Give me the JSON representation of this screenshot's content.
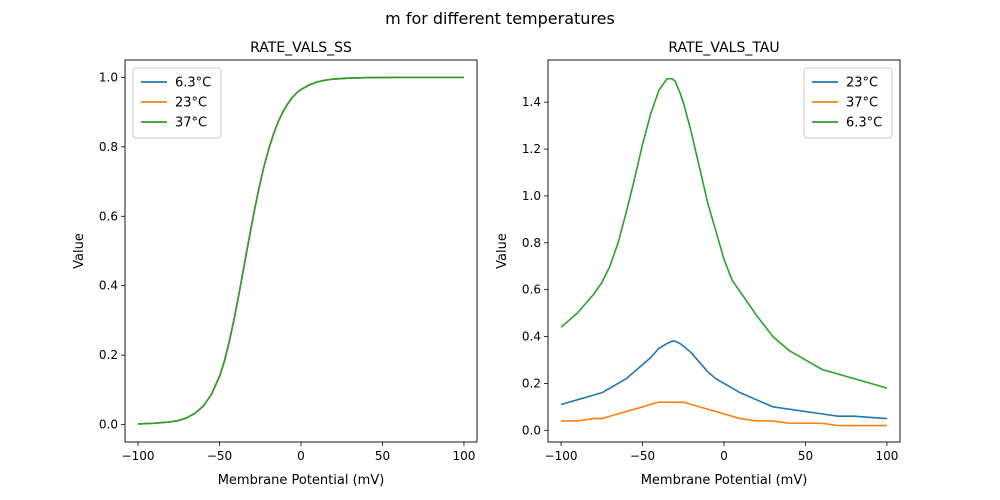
{
  "figure": {
    "suptitle": "m for different temperatures"
  },
  "colors": {
    "blue": "#1f77b4",
    "orange": "#ff7f0e",
    "green": "#2ca02c"
  },
  "chart_data": [
    {
      "type": "line",
      "title": "RATE_VALS_SS",
      "xlabel": "Membrane Potential (mV)",
      "ylabel": "Value",
      "xlim": [
        -108,
        108
      ],
      "ylim": [
        -0.05,
        1.05
      ],
      "xticks": [
        -100,
        -50,
        0,
        50,
        100
      ],
      "yticks": [
        0.0,
        0.2,
        0.4,
        0.6,
        0.8,
        1.0
      ],
      "ytick_decimals": 1,
      "legend_position": "upper-left",
      "grid": false,
      "x": [
        -100,
        -90,
        -80,
        -75,
        -70,
        -65,
        -60,
        -55,
        -50,
        -47,
        -44,
        -41,
        -38,
        -35,
        -32,
        -29,
        -26,
        -23,
        -20,
        -17,
        -14,
        -11,
        -8,
        -5,
        -2,
        0,
        5,
        10,
        15,
        20,
        30,
        40,
        60,
        80,
        100
      ],
      "series": [
        {
          "name": "6.3°C",
          "color": "#1f77b4",
          "values": [
            0.002,
            0.004,
            0.008,
            0.012,
            0.02,
            0.033,
            0.053,
            0.087,
            0.139,
            0.183,
            0.24,
            0.305,
            0.378,
            0.455,
            0.532,
            0.607,
            0.676,
            0.738,
            0.79,
            0.835,
            0.872,
            0.902,
            0.925,
            0.944,
            0.958,
            0.965,
            0.978,
            0.987,
            0.992,
            0.995,
            0.998,
            0.999,
            1.0,
            1.0,
            1.0
          ]
        },
        {
          "name": "23°C",
          "color": "#ff7f0e",
          "values": [
            0.002,
            0.004,
            0.008,
            0.012,
            0.02,
            0.033,
            0.053,
            0.087,
            0.139,
            0.183,
            0.24,
            0.305,
            0.378,
            0.455,
            0.532,
            0.607,
            0.676,
            0.738,
            0.79,
            0.835,
            0.872,
            0.902,
            0.925,
            0.944,
            0.958,
            0.965,
            0.978,
            0.987,
            0.992,
            0.995,
            0.998,
            0.999,
            1.0,
            1.0,
            1.0
          ]
        },
        {
          "name": "37°C",
          "color": "#2ca02c",
          "values": [
            0.002,
            0.004,
            0.008,
            0.012,
            0.02,
            0.033,
            0.053,
            0.087,
            0.139,
            0.183,
            0.24,
            0.305,
            0.378,
            0.455,
            0.532,
            0.607,
            0.676,
            0.738,
            0.79,
            0.835,
            0.872,
            0.902,
            0.925,
            0.944,
            0.958,
            0.965,
            0.978,
            0.987,
            0.992,
            0.995,
            0.998,
            0.999,
            1.0,
            1.0,
            1.0
          ]
        }
      ]
    },
    {
      "type": "line",
      "title": "RATE_VALS_TAU",
      "xlabel": "Membrane Potential (mV)",
      "ylabel": "Value",
      "xlim": [
        -108,
        108
      ],
      "ylim": [
        -0.05,
        1.58
      ],
      "xticks": [
        -100,
        -50,
        0,
        50,
        100
      ],
      "yticks": [
        0.0,
        0.2,
        0.4,
        0.6,
        0.8,
        1.0,
        1.2,
        1.4
      ],
      "ytick_decimals": 1,
      "legend_position": "upper-right",
      "grid": false,
      "x": [
        -100,
        -90,
        -80,
        -75,
        -70,
        -65,
        -60,
        -55,
        -50,
        -45,
        -40,
        -35,
        -32,
        -30,
        -27,
        -25,
        -20,
        -15,
        -10,
        -5,
        0,
        5,
        10,
        20,
        30,
        40,
        60,
        70,
        80,
        90,
        100
      ],
      "series": [
        {
          "name": "23°C",
          "color": "#1f77b4",
          "values": [
            0.11,
            0.13,
            0.15,
            0.16,
            0.18,
            0.2,
            0.22,
            0.25,
            0.28,
            0.31,
            0.35,
            0.37,
            0.38,
            0.38,
            0.37,
            0.36,
            0.33,
            0.29,
            0.25,
            0.22,
            0.2,
            0.18,
            0.16,
            0.13,
            0.1,
            0.09,
            0.07,
            0.06,
            0.06,
            0.055,
            0.05
          ]
        },
        {
          "name": "37°C",
          "color": "#ff7f0e",
          "values": [
            0.04,
            0.04,
            0.05,
            0.05,
            0.06,
            0.07,
            0.08,
            0.09,
            0.1,
            0.11,
            0.12,
            0.12,
            0.12,
            0.12,
            0.12,
            0.12,
            0.11,
            0.1,
            0.09,
            0.08,
            0.07,
            0.06,
            0.05,
            0.04,
            0.04,
            0.03,
            0.03,
            0.02,
            0.02,
            0.02,
            0.02
          ]
        },
        {
          "name": "6.3°C",
          "color": "#2ca02c",
          "values": [
            0.44,
            0.5,
            0.58,
            0.63,
            0.7,
            0.8,
            0.93,
            1.07,
            1.22,
            1.35,
            1.45,
            1.5,
            1.5,
            1.49,
            1.44,
            1.4,
            1.27,
            1.12,
            0.97,
            0.85,
            0.73,
            0.64,
            0.59,
            0.49,
            0.4,
            0.34,
            0.26,
            0.24,
            0.22,
            0.2,
            0.18
          ]
        }
      ]
    }
  ]
}
